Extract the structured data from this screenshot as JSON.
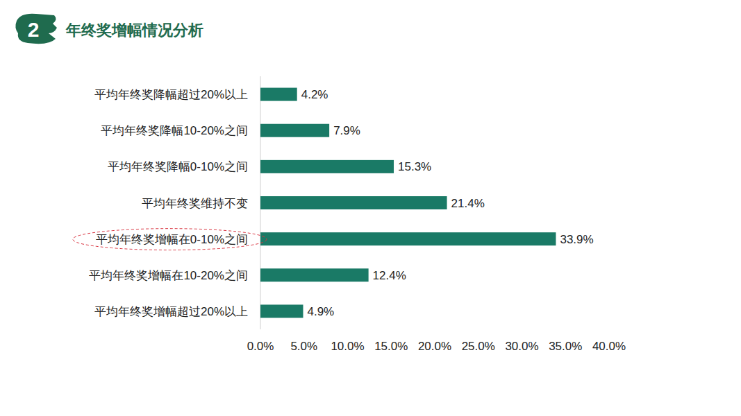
{
  "header": {
    "number": "2"
  },
  "chart_data": {
    "type": "bar",
    "orientation": "horizontal",
    "title": "年终奖增幅情况分析",
    "categories": [
      "平均年终奖降幅超过20%以上",
      "平均年终奖降幅10-20%之间",
      "平均年终奖降幅0-10%之间",
      "平均年终奖维持不变",
      "平均年终奖增幅在0-10%之间",
      "平均年终奖增幅在10-20%之间",
      "平均年终奖增幅超过20%以上"
    ],
    "values": [
      4.2,
      7.9,
      15.3,
      21.4,
      33.9,
      12.4,
      4.9
    ],
    "value_labels": [
      "4.2%",
      "7.9%",
      "15.3%",
      "21.4%",
      "33.9%",
      "12.4%",
      "4.9%"
    ],
    "color": "#1a7a66",
    "xlim": [
      0,
      40
    ],
    "xticks": [
      {
        "value": 0,
        "label": "0.0%"
      },
      {
        "value": 5,
        "label": "5.0%"
      },
      {
        "value": 10,
        "label": "10.0%"
      },
      {
        "value": 15,
        "label": "15.0%"
      },
      {
        "value": 20,
        "label": "20.0%"
      },
      {
        "value": 25,
        "label": "25.0%"
      },
      {
        "value": 30,
        "label": "30.0%"
      },
      {
        "value": 35,
        "label": "35.0%"
      },
      {
        "value": 40,
        "label": "40.0%"
      }
    ],
    "grid": false,
    "data_labels": true
  }
}
